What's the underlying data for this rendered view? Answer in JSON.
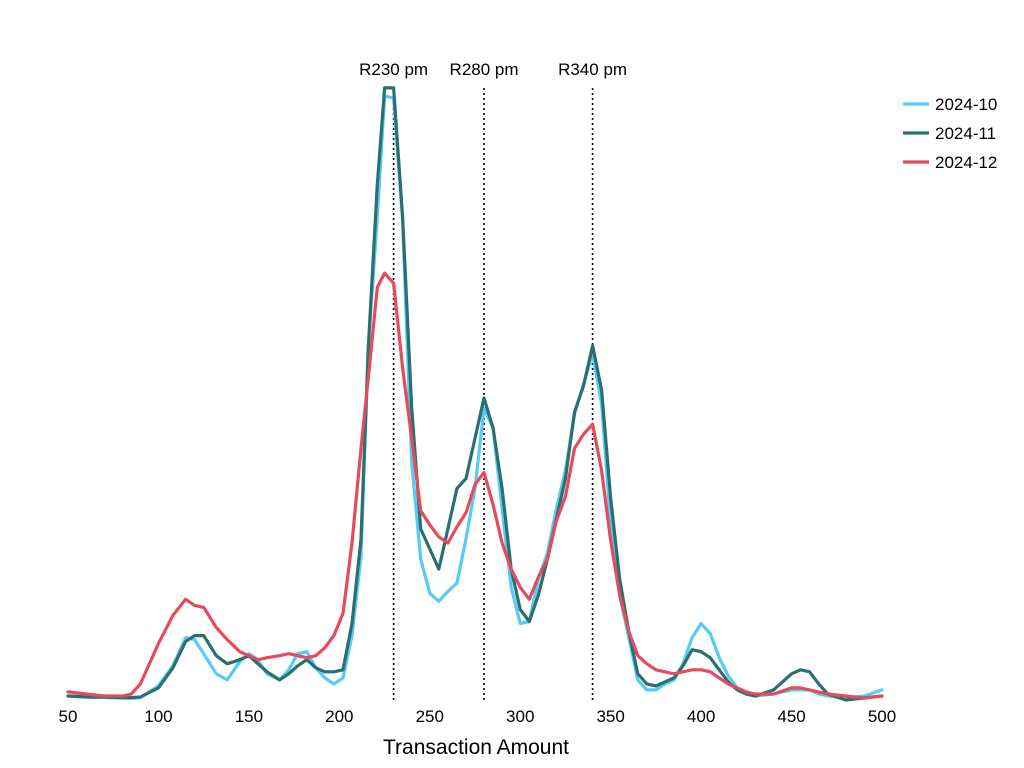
{
  "chart_data": {
    "type": "line",
    "title": "",
    "xlabel": "Transaction Amount",
    "ylabel": "",
    "xlim": [
      50,
      500
    ],
    "ylim": [
      0,
      0.03
    ],
    "xticks": [
      50,
      100,
      150,
      200,
      250,
      300,
      350,
      400,
      450,
      500
    ],
    "grid": false,
    "legend_position": "top-right",
    "reference_lines": [
      {
        "x": 230,
        "label": "R230 pm"
      },
      {
        "x": 280,
        "label": "R280 pm"
      },
      {
        "x": 340,
        "label": "R340 pm"
      }
    ],
    "x": [
      50,
      60,
      70,
      80,
      85,
      90,
      100,
      108,
      115,
      120,
      125,
      132,
      138,
      145,
      150,
      155,
      160,
      167,
      172,
      177,
      182,
      187,
      192,
      197,
      202,
      207,
      212,
      216,
      221,
      225,
      230,
      235,
      240,
      245,
      250,
      255,
      260,
      265,
      270,
      275,
      280,
      285,
      290,
      295,
      300,
      305,
      310,
      315,
      320,
      325,
      330,
      335,
      340,
      345,
      350,
      355,
      360,
      365,
      370,
      375,
      380,
      385,
      390,
      395,
      400,
      405,
      410,
      415,
      420,
      425,
      430,
      440,
      450,
      455,
      460,
      465,
      470,
      480,
      490,
      500
    ],
    "series": [
      {
        "name": "2024-10",
        "color": "#55cbf5",
        "values": [
          0.0002,
          0.00015,
          0.00012,
          0.0001,
          8e-05,
          0.00012,
          0.0007,
          0.0017,
          0.0031,
          0.003,
          0.0023,
          0.0013,
          0.001,
          0.0019,
          0.0023,
          0.002,
          0.0013,
          0.001,
          0.0015,
          0.0023,
          0.0024,
          0.0016,
          0.0011,
          0.0008,
          0.0011,
          0.0032,
          0.0071,
          0.0175,
          0.024,
          0.03,
          0.0299,
          0.0238,
          0.0118,
          0.007,
          0.0053,
          0.0049,
          0.0054,
          0.0058,
          0.008,
          0.0105,
          0.0145,
          0.0135,
          0.0095,
          0.0056,
          0.0038,
          0.0039,
          0.006,
          0.0073,
          0.0095,
          0.0114,
          0.0142,
          0.0157,
          0.0172,
          0.0147,
          0.0087,
          0.0052,
          0.0031,
          0.001,
          0.0005,
          0.0005,
          0.0008,
          0.001,
          0.0018,
          0.0031,
          0.0038,
          0.0033,
          0.0021,
          0.0012,
          0.0006,
          0.0003,
          0.0002,
          0.0003,
          0.0005,
          0.0005,
          0.0005,
          0.0003,
          0.0002,
          0.0001,
          0.0002,
          0.0005
        ]
      },
      {
        "name": "2024-11",
        "color": "#2a7070",
        "values": [
          0.0002,
          0.00015,
          0.00015,
          0.00012,
          0.00012,
          0.00015,
          0.0006,
          0.0016,
          0.0029,
          0.0032,
          0.0032,
          0.0022,
          0.0018,
          0.002,
          0.0022,
          0.0018,
          0.0014,
          0.001,
          0.0013,
          0.0017,
          0.002,
          0.0016,
          0.0014,
          0.0014,
          0.0015,
          0.0038,
          0.008,
          0.0175,
          0.0256,
          0.0304,
          0.0304,
          0.024,
          0.0145,
          0.0085,
          0.0075,
          0.0065,
          0.0085,
          0.0105,
          0.011,
          0.013,
          0.015,
          0.0135,
          0.0105,
          0.0065,
          0.0045,
          0.0039,
          0.0052,
          0.007,
          0.009,
          0.011,
          0.0143,
          0.0156,
          0.0176,
          0.0154,
          0.01,
          0.006,
          0.0034,
          0.0013,
          0.0008,
          0.0007,
          0.0009,
          0.0011,
          0.0017,
          0.0025,
          0.0024,
          0.0021,
          0.0015,
          0.0009,
          0.0005,
          0.0003,
          0.0002,
          0.0005,
          0.0013,
          0.0015,
          0.0014,
          0.0008,
          0.0003,
          0.0,
          0.0001,
          0.0002
        ]
      },
      {
        "name": "2024-12",
        "color": "#e54b5a",
        "values": [
          0.0004,
          0.0003,
          0.0002,
          0.0002,
          0.0003,
          0.0008,
          0.0028,
          0.0042,
          0.005,
          0.0047,
          0.0046,
          0.0036,
          0.003,
          0.0024,
          0.0022,
          0.002,
          0.0021,
          0.0022,
          0.0023,
          0.0022,
          0.0021,
          0.0022,
          0.0026,
          0.0032,
          0.0043,
          0.0078,
          0.0125,
          0.016,
          0.0205,
          0.0212,
          0.0207,
          0.0165,
          0.013,
          0.0094,
          0.0087,
          0.0081,
          0.0078,
          0.0086,
          0.0093,
          0.0107,
          0.0113,
          0.0097,
          0.0078,
          0.0065,
          0.0056,
          0.005,
          0.0061,
          0.007,
          0.0089,
          0.0101,
          0.0125,
          0.0132,
          0.0137,
          0.0114,
          0.0079,
          0.0052,
          0.0034,
          0.0022,
          0.0018,
          0.0015,
          0.0014,
          0.0013,
          0.0014,
          0.0015,
          0.0015,
          0.0014,
          0.0011,
          0.0008,
          0.0006,
          0.0004,
          0.0003,
          0.0003,
          0.0006,
          0.0006,
          0.0005,
          0.0004,
          0.0003,
          0.0002,
          0.0001,
          0.0002
        ]
      }
    ]
  }
}
